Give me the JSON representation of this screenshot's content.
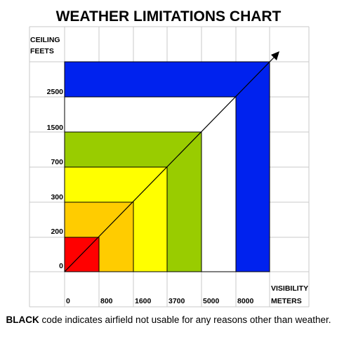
{
  "chart_data": {
    "type": "table",
    "title": "WEATHER LIMITATIONS CHART",
    "ylabel": [
      "CEILING",
      "FEETS"
    ],
    "xlabel": [
      "VISIBILITY",
      "METERS"
    ],
    "ceiling_ticks": [
      "0",
      "200",
      "300",
      "700",
      "1500",
      "2500"
    ],
    "visibility_ticks": [
      "0",
      "800",
      "1600",
      "3700",
      "5000",
      "8000"
    ],
    "zones": [
      {
        "color": "#0022ee",
        "ceiling_ft": "2500+",
        "visibility_m": "8000+"
      },
      {
        "color": "#ffffff",
        "ceiling_ft": 2500,
        "visibility_m": 8000
      },
      {
        "color": "#99cc00",
        "ceiling_ft": 1500,
        "visibility_m": 5000
      },
      {
        "color": "#ffff00",
        "ceiling_ft": 700,
        "visibility_m": 3700
      },
      {
        "color": "#ffcc00",
        "ceiling_ft": 300,
        "visibility_m": 1600
      },
      {
        "color": "#ff0000",
        "ceiling_ft": 200,
        "visibility_m": 800
      }
    ],
    "grid": true,
    "diagonal_arrow": true
  },
  "footnote": {
    "bold": "BLACK",
    "rest": " code indicates airfield not usable for any reasons other than weather."
  }
}
